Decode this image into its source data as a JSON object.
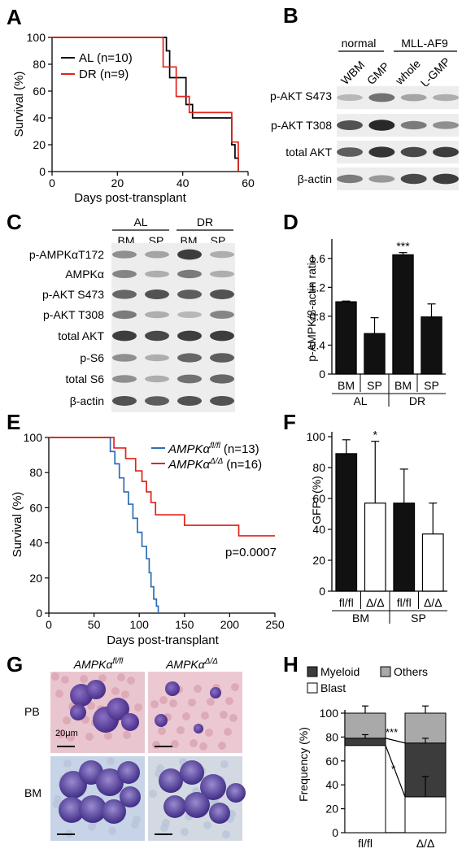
{
  "panel_letters": {
    "a": "A",
    "b": "B",
    "c": "C",
    "d": "D",
    "e": "E",
    "f": "F",
    "g": "G",
    "h": "H"
  },
  "colors": {
    "black": "#000000",
    "red": "#e2231a",
    "blue": "#2e6db4",
    "bar_dark": "#111111",
    "myeloid": "#3c3c3c",
    "others": "#a9a9a9",
    "blast": "#ffffff"
  },
  "panel_a": {
    "ylabel": "Survival (%)",
    "xlabel": "Days post-transplant",
    "xticks": [
      "0",
      "20",
      "40",
      "60"
    ],
    "yticks": [
      "0",
      "20",
      "40",
      "60",
      "80",
      "100"
    ],
    "legend": [
      "AL (n=10)",
      "DR (n=9)"
    ]
  },
  "panel_b": {
    "groups": [
      "normal",
      "MLL-AF9"
    ],
    "lanes": [
      "WBM",
      "GMP",
      "whole",
      "L-GMP"
    ],
    "rows": [
      "p-AKT S473",
      "p-AKT T308",
      "total AKT",
      "β-actin"
    ]
  },
  "panel_c": {
    "groups": [
      "AL",
      "DR"
    ],
    "lanes": [
      "BM",
      "SP",
      "BM",
      "SP"
    ],
    "rows": [
      "p-AMPKαT172",
      "AMPKα",
      "p-AKT S473",
      "p-AKT T308",
      "total AKT",
      "p-S6",
      "total S6",
      "β-actin"
    ]
  },
  "panel_e": {
    "ylabel": "Survival (%)",
    "xlabel": "Days post-transplant",
    "xticks": [
      "0",
      "50",
      "100",
      "150",
      "200",
      "250"
    ],
    "yticks": [
      "0",
      "20",
      "40",
      "60",
      "80",
      "100"
    ],
    "legend": [
      {
        "gene": "AMPKα",
        "sup": "fl/fl",
        "n": "(n=13)"
      },
      {
        "gene": "AMPKα",
        "sup": "Δ/Δ",
        "n": "(n=16)"
      }
    ],
    "pvalue": "p=0.0007"
  },
  "panel_g": {
    "col_labels": [
      {
        "gene": "AMPKα",
        "sup": "fl/fl"
      },
      {
        "gene": "AMPKα",
        "sup": "Δ/Δ"
      }
    ],
    "row_labels": [
      "PB",
      "BM"
    ],
    "scale_label": "20μm"
  },
  "chart_data": [
    {
      "panel": "A",
      "type": "line",
      "xlabel": "Days post-transplant",
      "ylabel": "Survival (%)",
      "xlim": [
        0,
        60
      ],
      "ylim": [
        0,
        100
      ],
      "series": [
        {
          "name": "AL (n=10)",
          "color": "#000000",
          "x": [
            0,
            35,
            35,
            36,
            36,
            41,
            41,
            43,
            43,
            46,
            46,
            55,
            55,
            56,
            56,
            57,
            57
          ],
          "y": [
            100,
            100,
            90,
            90,
            70,
            70,
            50,
            50,
            40,
            40,
            40,
            40,
            20,
            20,
            10,
            10,
            0
          ]
        },
        {
          "name": "DR (n=9)",
          "color": "#e2231a",
          "x": [
            0,
            34,
            34,
            38,
            38,
            42,
            42,
            44,
            44,
            55,
            55,
            57,
            57
          ],
          "y": [
            100,
            100,
            78,
            78,
            56,
            56,
            44,
            44,
            44,
            44,
            22,
            22,
            0
          ]
        }
      ]
    },
    {
      "panel": "D",
      "type": "bar",
      "ylabel": "p-AMPK/β-actin ratio",
      "categories": [
        "BM",
        "SP",
        "BM",
        "SP"
      ],
      "groups": [
        "AL",
        "DR"
      ],
      "values": [
        1.0,
        0.56,
        1.65,
        0.79
      ],
      "errors": [
        0.01,
        0.22,
        0.03,
        0.18
      ],
      "annotations": [
        "",
        "",
        "***",
        ""
      ],
      "ylim": [
        0,
        1.8
      ],
      "yticks": [
        "0",
        "0.4",
        "0.8",
        "1.2",
        "1.6"
      ]
    },
    {
      "panel": "E",
      "type": "line",
      "xlabel": "Days post-transplant",
      "ylabel": "Survival (%)",
      "xlim": [
        0,
        250
      ],
      "ylim": [
        0,
        100
      ],
      "series": [
        {
          "name": "AMPKα fl/fl (n=13)",
          "color": "#2e6db4",
          "x": [
            0,
            68,
            68,
            73,
            73,
            78,
            78,
            83,
            83,
            88,
            88,
            93,
            93,
            98,
            98,
            103,
            103,
            108,
            108,
            111,
            111,
            113,
            113,
            116,
            116,
            119,
            119,
            121,
            121
          ],
          "y": [
            100,
            100,
            92,
            92,
            85,
            85,
            77,
            77,
            69,
            69,
            62,
            62,
            54,
            54,
            46,
            46,
            38,
            38,
            31,
            31,
            23,
            23,
            15,
            15,
            8,
            8,
            4,
            4,
            0
          ]
        },
        {
          "name": "AMPKα Δ/Δ (n=16)",
          "color": "#e2231a",
          "x": [
            0,
            72,
            72,
            85,
            85,
            96,
            96,
            103,
            103,
            108,
            108,
            113,
            113,
            118,
            118,
            123,
            123,
            150,
            150,
            210,
            210,
            250
          ],
          "y": [
            100,
            100,
            94,
            94,
            88,
            88,
            81,
            81,
            75,
            75,
            69,
            69,
            63,
            63,
            56,
            56,
            56,
            56,
            50,
            50,
            44,
            44
          ]
        }
      ]
    },
    {
      "panel": "F",
      "type": "bar",
      "ylabel": "GFP⁺ (%)",
      "categories": [
        "fl/fl",
        "Δ/Δ",
        "fl/fl",
        "Δ/Δ"
      ],
      "groups": [
        "BM",
        "SP"
      ],
      "values": [
        89,
        57,
        57,
        37
      ],
      "errors": [
        9,
        40,
        22,
        20
      ],
      "fills": [
        "#111111",
        "#ffffff",
        "#111111",
        "#ffffff"
      ],
      "annotations": [
        "",
        "*",
        "",
        ""
      ],
      "ylim": [
        0,
        100
      ],
      "yticks": [
        "0",
        "20",
        "40",
        "60",
        "80",
        "100"
      ]
    },
    {
      "panel": "H",
      "type": "bar",
      "stacked": true,
      "ylabel": "Frequency (%)",
      "categories": [
        "fl/fl",
        "Δ/Δ"
      ],
      "series": [
        {
          "name": "Blast",
          "values": [
            73,
            30
          ],
          "color": "#ffffff"
        },
        {
          "name": "Myeloid",
          "values": [
            6,
            45
          ],
          "color": "#3c3c3c"
        },
        {
          "name": "Others",
          "values": [
            21,
            25
          ],
          "color": "#a9a9a9"
        }
      ],
      "annotations": [
        "***",
        "*"
      ],
      "ylim": [
        0,
        100
      ],
      "yticks": [
        "0",
        "20",
        "40",
        "60",
        "80",
        "100"
      ]
    }
  ]
}
